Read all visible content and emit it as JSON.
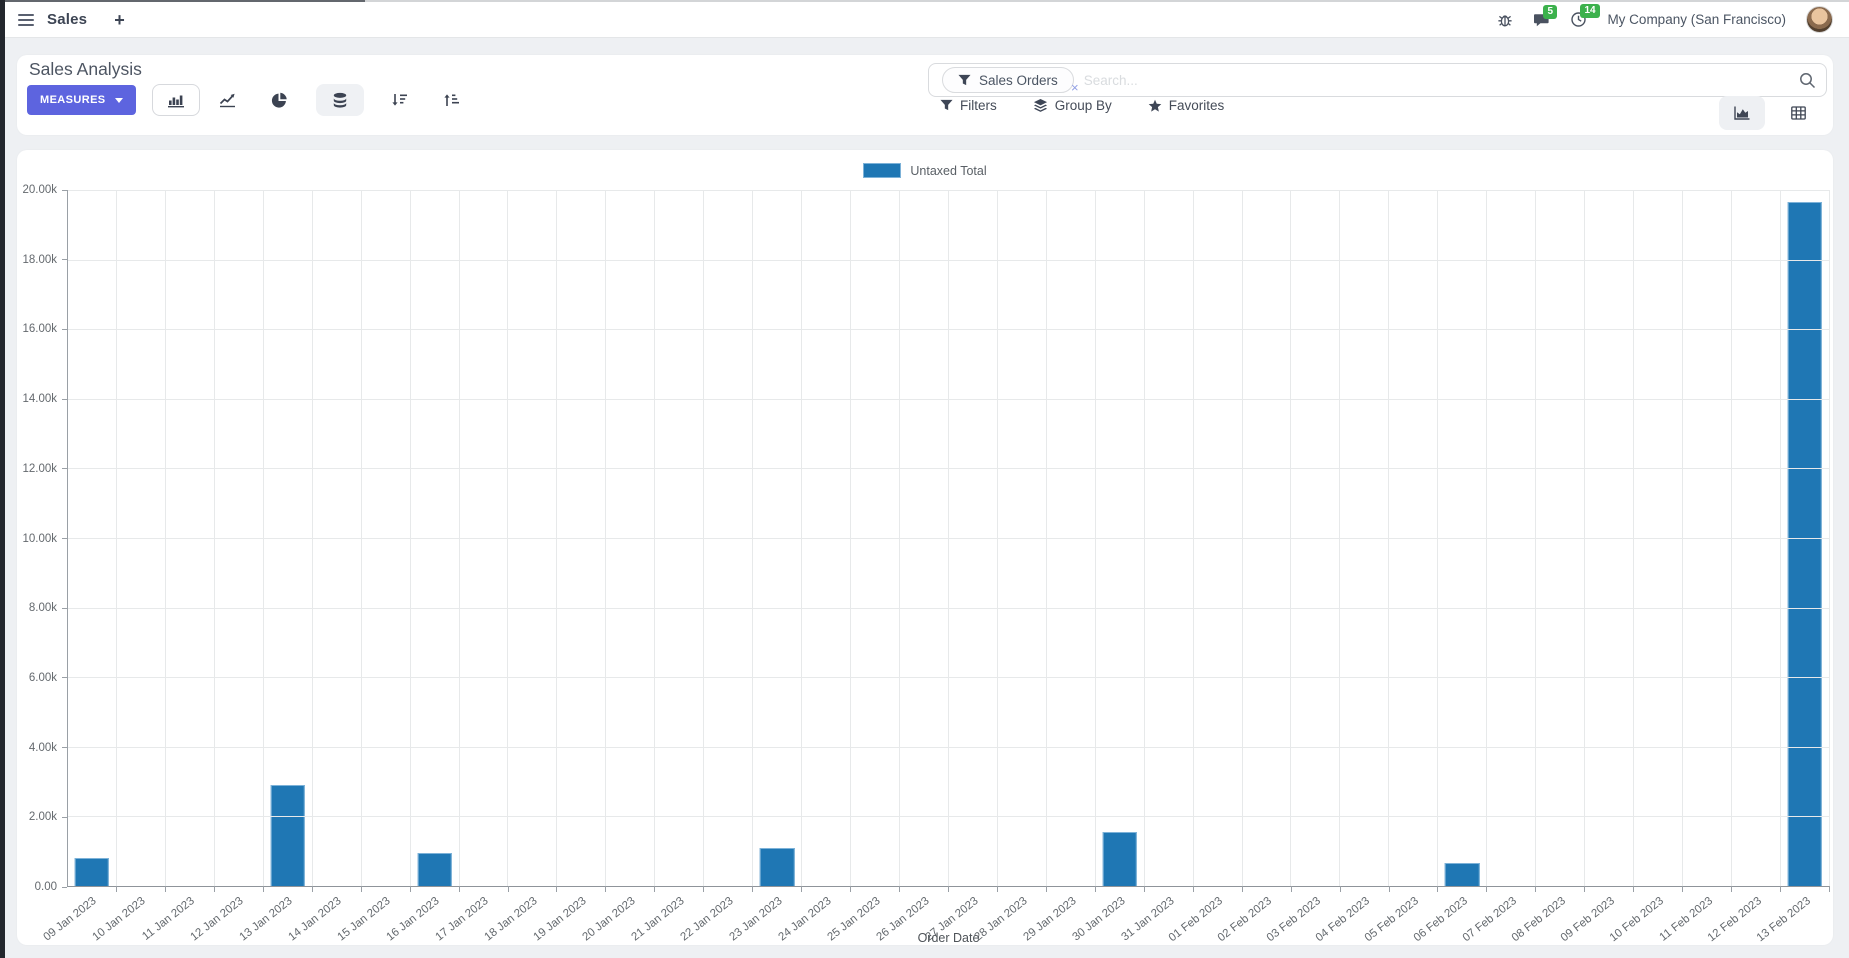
{
  "navbar": {
    "app_name": "Sales",
    "new_label": "+",
    "messages_count": "5",
    "activities_count": "14",
    "company": "My Company (San Francisco)"
  },
  "control_panel": {
    "title": "Sales Analysis",
    "measures_label": "MEASURES",
    "search": {
      "facet": "Sales Orders",
      "remove_label": "×",
      "placeholder": "Search..."
    },
    "filters_label": "Filters",
    "group_by_label": "Group By",
    "favorites_label": "Favorites"
  },
  "chart_data": {
    "type": "bar",
    "title": "",
    "legend": [
      "Untaxed Total"
    ],
    "legend_position": "top",
    "grid": true,
    "xlabel": "Order Date",
    "ylabel": "",
    "ylim": [
      0,
      20000
    ],
    "ytick_labels": [
      "0.00",
      "2.00k",
      "4.00k",
      "6.00k",
      "8.00k",
      "10.00k",
      "12.00k",
      "14.00k",
      "16.00k",
      "18.00k",
      "20.00k"
    ],
    "categories": [
      "09 Jan 2023",
      "10 Jan 2023",
      "11 Jan 2023",
      "12 Jan 2023",
      "13 Jan 2023",
      "14 Jan 2023",
      "15 Jan 2023",
      "16 Jan 2023",
      "17 Jan 2023",
      "18 Jan 2023",
      "19 Jan 2023",
      "20 Jan 2023",
      "21 Jan 2023",
      "22 Jan 2023",
      "23 Jan 2023",
      "24 Jan 2023",
      "25 Jan 2023",
      "26 Jan 2023",
      "27 Jan 2023",
      "28 Jan 2023",
      "29 Jan 2023",
      "30 Jan 2023",
      "31 Jan 2023",
      "01 Feb 2023",
      "02 Feb 2023",
      "03 Feb 2023",
      "04 Feb 2023",
      "05 Feb 2023",
      "06 Feb 2023",
      "07 Feb 2023",
      "08 Feb 2023",
      "09 Feb 2023",
      "10 Feb 2023",
      "11 Feb 2023",
      "12 Feb 2023",
      "13 Feb 2023"
    ],
    "values": [
      800,
      0,
      0,
      0,
      2900,
      0,
      0,
      950,
      0,
      0,
      0,
      0,
      0,
      0,
      1100,
      0,
      0,
      0,
      0,
      0,
      0,
      1550,
      0,
      0,
      0,
      0,
      0,
      0,
      650,
      0,
      0,
      0,
      0,
      0,
      0,
      19650
    ],
    "bar_color": "#1f77b4"
  },
  "colors": {
    "accent": "#5d64df",
    "bar": "#1f77b4",
    "badge_green": "#3cb14c"
  }
}
